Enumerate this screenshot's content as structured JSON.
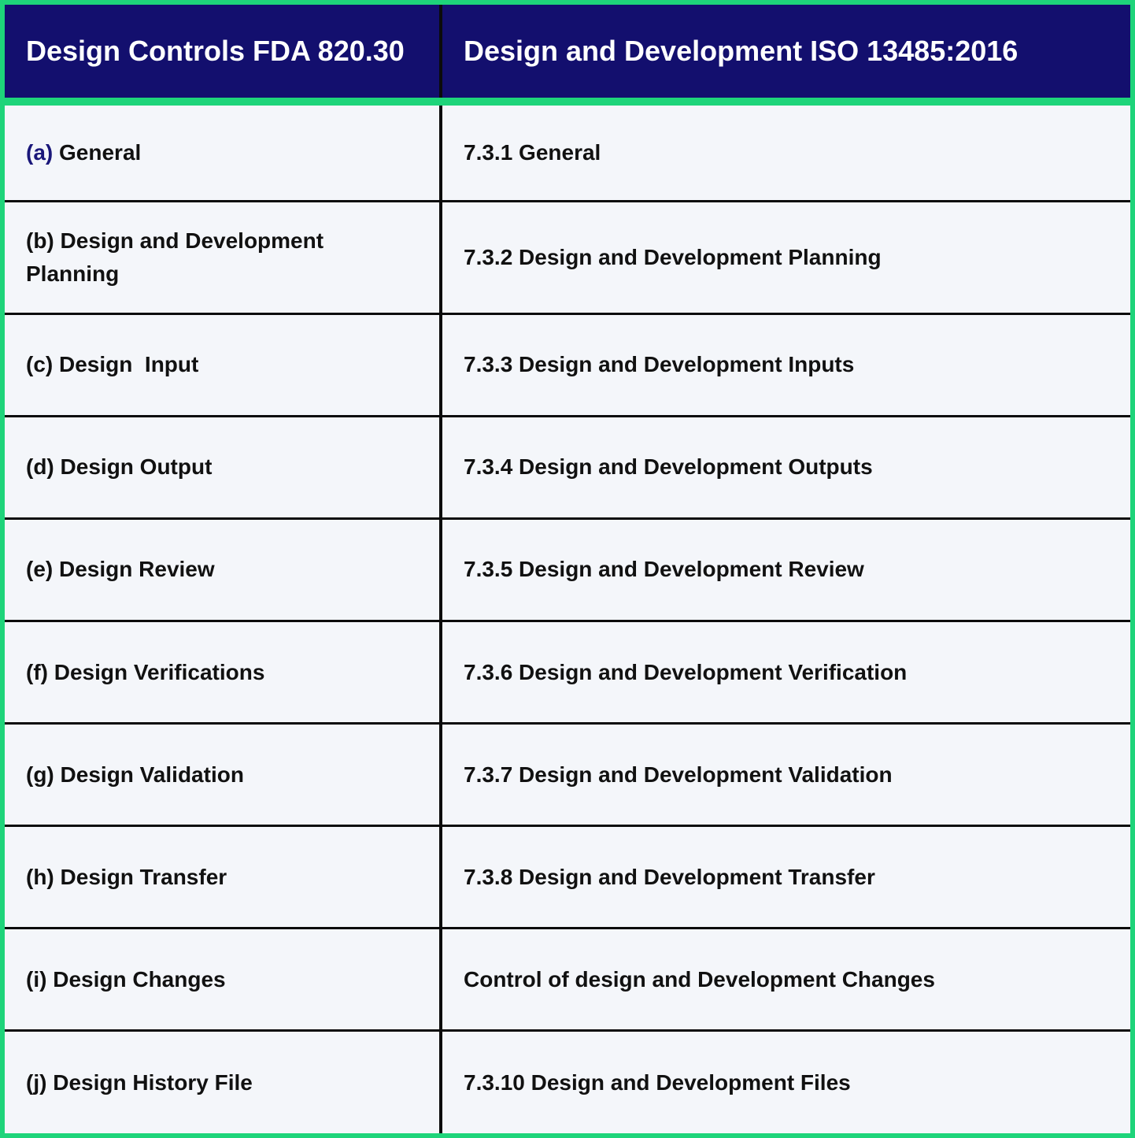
{
  "header": {
    "left": "Design Controls FDA 820.30",
    "right": "Design and Development ISO 13485:2016"
  },
  "rows": [
    {
      "left_prefix": "(a)",
      "left_text": "General",
      "right": "7.3.1 General"
    },
    {
      "left_prefix": "(b)",
      "left_text": "Design and Development Planning",
      "right": "7.3.2 Design and Development Planning"
    },
    {
      "left_prefix": "(c)",
      "left_text": "Design  Input",
      "right": "7.3.3 Design and Development Inputs"
    },
    {
      "left_prefix": "(d)",
      "left_text": "Design Output",
      "right": "7.3.4 Design and Development Outputs"
    },
    {
      "left_prefix": "(e)",
      "left_text": "Design Review",
      "right": "7.3.5 Design and Development Review"
    },
    {
      "left_prefix": "(f)",
      "left_text": "Design Verifications",
      "right": "7.3.6 Design and Development Verification"
    },
    {
      "left_prefix": "(g)",
      "left_text": "Design Validation",
      "right": "7.3.7 Design and Development Validation"
    },
    {
      "left_prefix": "(h)",
      "left_text": "Design Transfer",
      "right": "7.3.8 Design and Development Transfer"
    },
    {
      "left_prefix": "(i)",
      "left_text": "Design Changes",
      "right": "Control of design and Development Changes"
    },
    {
      "left_prefix": "(j)",
      "left_text": "Design History File",
      "right": "7.3.10 Design and Development Files"
    }
  ],
  "colors": {
    "header_bg": "#130f6e",
    "frame_border": "#1ed47a",
    "body_bg": "#f4f6fa",
    "accent_text": "#1a177a"
  }
}
